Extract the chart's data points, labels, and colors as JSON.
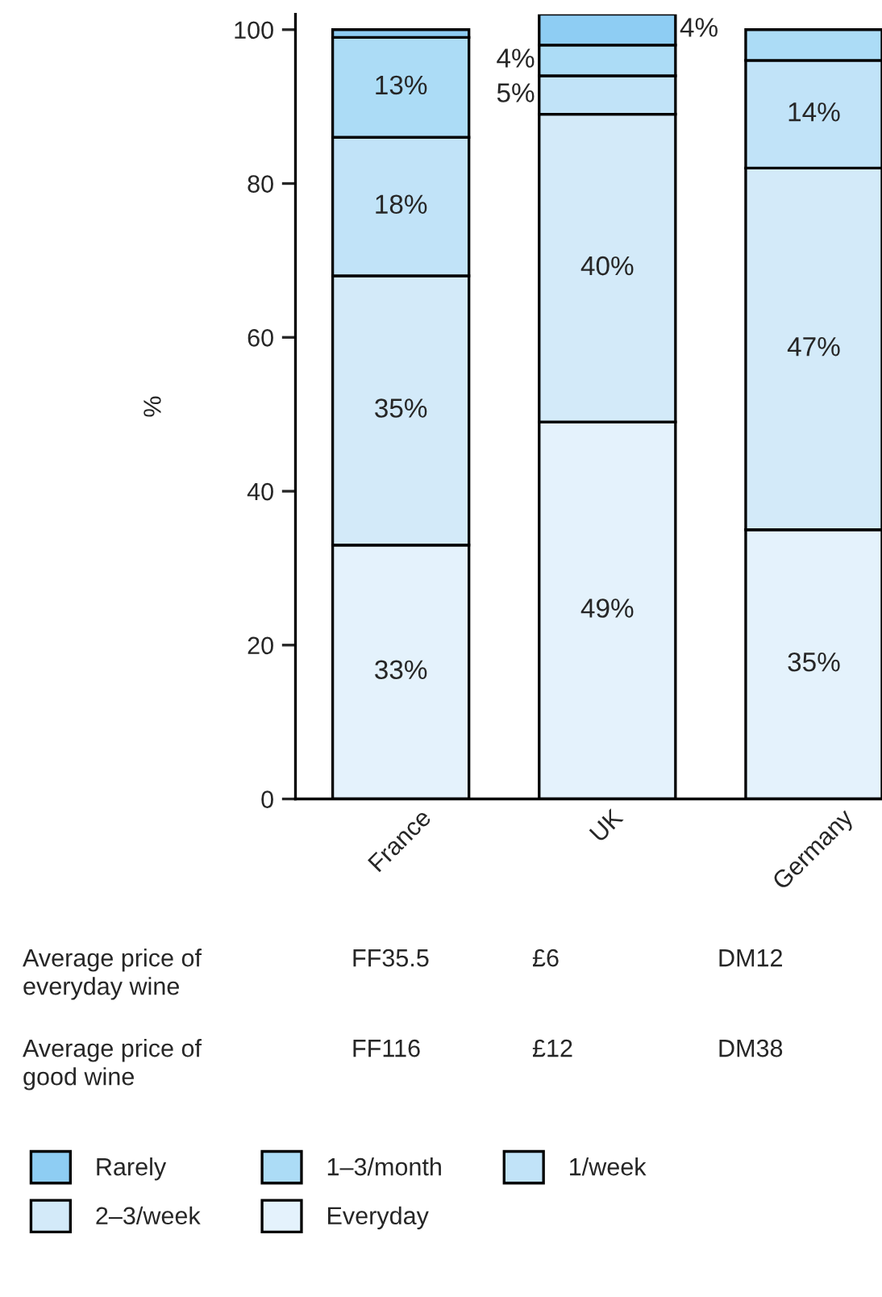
{
  "chart_data": {
    "type": "bar",
    "stacked": true,
    "ylabel": "%",
    "categories": [
      "France",
      "UK",
      "Germany"
    ],
    "series": [
      {
        "name": "Everyday",
        "color": "#e4f2fc",
        "values": [
          33,
          49,
          35
        ],
        "value_labels": [
          "33%",
          "49%",
          "35%"
        ]
      },
      {
        "name": "2–3/week",
        "color": "#d3eaf9",
        "values": [
          35,
          40,
          47
        ],
        "value_labels": [
          "35%",
          "40%",
          "47%"
        ]
      },
      {
        "name": "1/week",
        "color": "#c1e3f8",
        "values": [
          18,
          5,
          14
        ],
        "value_labels": [
          "18%",
          "5%",
          "14%"
        ]
      },
      {
        "name": "1–3/month",
        "color": "#acdcf6",
        "values": [
          13,
          4,
          4
        ],
        "value_labels": [
          "13%",
          "4%",
          null
        ]
      },
      {
        "name": "Rarely",
        "color": "#8ecdf3",
        "values": [
          1,
          4,
          null
        ],
        "value_labels": [
          null,
          "4%",
          null
        ]
      }
    ],
    "ylim": [
      0,
      102
    ],
    "yticks": [
      0,
      20,
      40,
      60,
      80,
      100
    ],
    "grid": false,
    "legend": "bottom",
    "annotations": [
      "Average price of\neveryday wine",
      "FF35.5",
      "£6",
      "DM12",
      "Average price of\ngood wine",
      "FF116",
      "£12",
      "DM38"
    ]
  }
}
